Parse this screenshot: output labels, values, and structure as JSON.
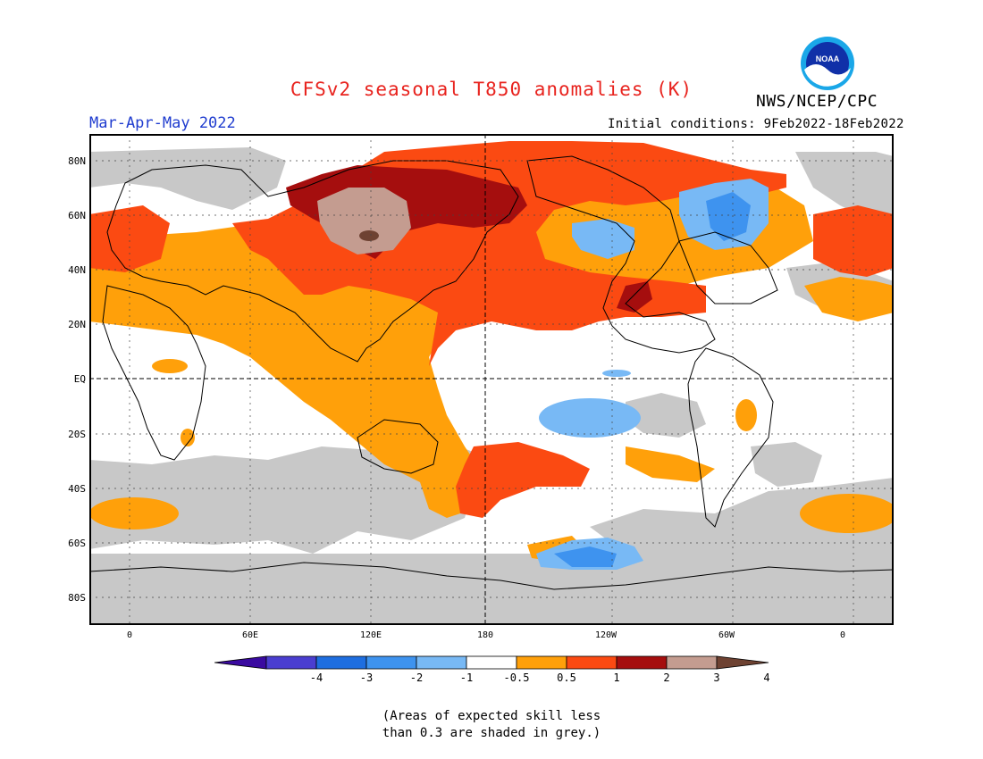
{
  "header": {
    "title": "CFSv2 seasonal T850 anomalies (K)",
    "agency": "NWS/NCEP/CPC",
    "season": "Mar-Apr-May 2022",
    "initial_conditions": "Initial conditions: 9Feb2022-18Feb2022",
    "logo_text": "NOAA"
  },
  "map": {
    "lat_labels": [
      "80N",
      "60N",
      "40N",
      "20N",
      "EQ",
      "20S",
      "40S",
      "60S",
      "80S"
    ],
    "lon_labels": [
      "0",
      "60E",
      "120E",
      "180",
      "120W",
      "60W",
      "0"
    ],
    "skill_mask_color": "#c8c8c8",
    "land_outline_color": "#000000"
  },
  "colorbar": {
    "ticks": [
      "-4",
      "-3",
      "-2",
      "-1",
      "-0.5",
      "0.5",
      "1",
      "2",
      "3",
      "4"
    ],
    "colors": [
      "#3a0aa0",
      "#4a3ed0",
      "#1e6ee0",
      "#3e93ef",
      "#78b9f5",
      "#ffffff",
      "#ffa00a",
      "#fb4a12",
      "#a50e0e",
      "#c49c90",
      "#6e4232"
    ]
  },
  "footnote": {
    "line1": "(Areas of expected skill less",
    "line2": "than 0.3 are shaded in grey.)"
  }
}
